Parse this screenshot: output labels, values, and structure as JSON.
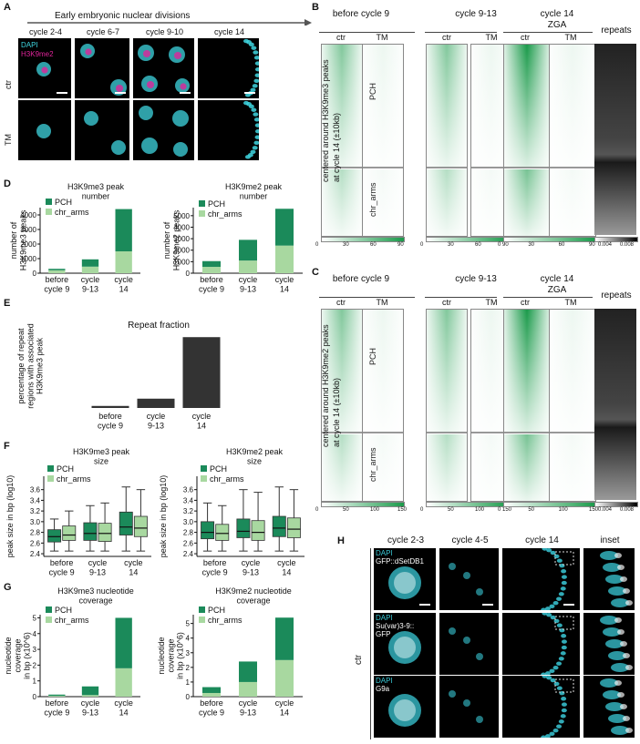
{
  "panel_letters": {
    "A": "A",
    "B": "B",
    "C": "C",
    "D": "D",
    "E": "E",
    "F": "F",
    "G": "G",
    "H": "H"
  },
  "panelA": {
    "arrow_label": "Early embryonic nuclear divisions",
    "columns": [
      "cycle 2-4",
      "cycle 6-7",
      "cycle 9-10",
      "cycle 14"
    ],
    "rows": [
      "ctr",
      "TM"
    ],
    "legend": [
      "DAPI",
      "H3K9me2"
    ],
    "colors": {
      "dapi": "#3fd6e0",
      "h3k9me2": "#e0249a"
    }
  },
  "panelB": {
    "groups": [
      "before cycle 9",
      "cycle 9-13",
      "cycle 14"
    ],
    "group_sub": "ZGA",
    "cols": [
      "ctr",
      "TM",
      "ctr",
      "TM",
      "ctr",
      "TM"
    ],
    "repeats": "repeats",
    "ylabel": "centered around H3K9me3 peaks\nat cycle 14 (±10kb)",
    "row_labels": [
      "PCH",
      "chr_arms"
    ],
    "scale_ticks": [
      "0",
      "30",
      "60",
      "90"
    ],
    "repeat_ticks": [
      "0.004",
      "0.008"
    ]
  },
  "panelC": {
    "groups": [
      "before cycle 9",
      "cycle 9-13",
      "cycle 14"
    ],
    "group_sub": "ZGA",
    "cols": [
      "ctr",
      "TM",
      "ctr",
      "TM",
      "ctr",
      "TM"
    ],
    "repeats": "repeats",
    "ylabel": "centered around H3K9me2 peaks\nat cycle 14 (±10kb)",
    "row_labels": [
      "PCH",
      "chr_arms"
    ],
    "scale_ticks": [
      "0",
      "50",
      "100",
      "150"
    ],
    "repeat_ticks": [
      "0.004",
      "0.008"
    ]
  },
  "chart_data": [
    {
      "id": "D1",
      "type": "bar",
      "title": "H3K9me3 peak\nnumber",
      "ylabel": "number of\nH3K9me3 peaks",
      "categories": [
        "before\ncycle 9",
        "cycle\n9-13",
        "cycle\n14"
      ],
      "ylim": [
        0,
        4500
      ],
      "yticks": [
        0,
        1000,
        2000,
        3000,
        4000
      ],
      "series": [
        {
          "name": "chr_arms",
          "values": [
            200,
            450,
            1500
          ]
        },
        {
          "name": "PCH",
          "values": [
            100,
            500,
            2900
          ]
        }
      ]
    },
    {
      "id": "D2",
      "type": "bar",
      "title": "H3K9me2 peak\nnumber",
      "ylabel": "number of\nH3K9me2 peaks",
      "categories": [
        "before\ncycle 9",
        "cycle\n9-13",
        "cycle\n14"
      ],
      "ylim": [
        0,
        5700
      ],
      "yticks": [
        0,
        1000,
        2000,
        3000,
        4000,
        5000
      ],
      "series": [
        {
          "name": "chr_arms",
          "values": [
            550,
            1100,
            2400
          ]
        },
        {
          "name": "PCH",
          "values": [
            500,
            1800,
            3200
          ]
        }
      ]
    },
    {
      "id": "E",
      "type": "bar",
      "title": "Repeat fraction",
      "ylabel": "percentage of repeat\nregions with associated\nH3K9me3 peak",
      "categories": [
        "before\ncycle 9",
        "cycle\n9-13",
        "cycle\n14"
      ],
      "ylim": [
        0,
        18
      ],
      "series": [
        {
          "values": [
            0.5,
            2.3,
            17.5
          ]
        }
      ]
    },
    {
      "id": "F1",
      "type": "box",
      "title": "H3K9me3 peak\nsize",
      "ylabel": "peak size in bp (log10)",
      "categories": [
        "before\ncycle 9",
        "cycle\n9-13",
        "cycle\n14"
      ],
      "ylim": [
        2.35,
        3.85
      ],
      "yticks": [
        2.4,
        2.6,
        2.8,
        3.0,
        3.2,
        3.4,
        3.6
      ],
      "series": [
        {
          "name": "PCH",
          "boxes": [
            [
              2.45,
              2.62,
              2.72,
              2.85,
              3.05
            ],
            [
              2.45,
              2.65,
              2.78,
              2.98,
              3.3
            ],
            [
              2.45,
              2.75,
              2.9,
              3.18,
              3.65
            ]
          ]
        },
        {
          "name": "chr_arms",
          "boxes": [
            [
              2.45,
              2.65,
              2.75,
              2.92,
              3.2
            ],
            [
              2.45,
              2.63,
              2.78,
              2.97,
              3.35
            ],
            [
              2.45,
              2.72,
              2.88,
              3.1,
              3.6
            ]
          ]
        }
      ]
    },
    {
      "id": "F2",
      "type": "box",
      "title": "H3K9me2 peak\nsize",
      "ylabel": "peak size in bp (log10)",
      "categories": [
        "before\ncycle 9",
        "cycle\n9-13",
        "cycle\n14"
      ],
      "ylim": [
        2.35,
        3.85
      ],
      "yticks": [
        2.4,
        2.6,
        2.8,
        3.0,
        3.2,
        3.4,
        3.6
      ],
      "series": [
        {
          "name": "PCH",
          "boxes": [
            [
              2.45,
              2.68,
              2.8,
              3.0,
              3.35
            ],
            [
              2.45,
              2.7,
              2.82,
              3.05,
              3.6
            ],
            [
              2.45,
              2.72,
              2.88,
              3.1,
              3.65
            ]
          ]
        },
        {
          "name": "chr_arms",
          "boxes": [
            [
              2.45,
              2.65,
              2.78,
              2.95,
              3.3
            ],
            [
              2.45,
              2.65,
              2.8,
              3.02,
              3.55
            ],
            [
              2.45,
              2.7,
              2.86,
              3.07,
              3.6
            ]
          ]
        }
      ]
    },
    {
      "id": "G1",
      "type": "bar",
      "title": "H3K9me3 nucleotide\ncoverage",
      "ylabel": "nucleotide\ncoverage\nin bp (x10^6)",
      "categories": [
        "before\ncycle 9",
        "cycle\n9-13",
        "cycle\n14"
      ],
      "ylim": [
        0,
        5.2
      ],
      "yticks": [
        0,
        1,
        2,
        3,
        4,
        5
      ],
      "series": [
        {
          "name": "chr_arms",
          "values": [
            0.05,
            0.1,
            1.8
          ]
        },
        {
          "name": "PCH",
          "values": [
            0.08,
            0.55,
            3.2
          ]
        }
      ]
    },
    {
      "id": "G2",
      "type": "bar",
      "title": "H3K9me2 nucleotide\ncoverage",
      "ylabel": "nucleotide\ncoverage\nin bp (x10^6)",
      "categories": [
        "before\ncycle 9",
        "cycle\n9-13",
        "cycle\n14"
      ],
      "ylim": [
        0,
        5.6
      ],
      "yticks": [
        0,
        1,
        2,
        3,
        4,
        5
      ],
      "series": [
        {
          "name": "chr_arms",
          "values": [
            0.25,
            1.0,
            2.5
          ]
        },
        {
          "name": "PCH",
          "values": [
            0.4,
            1.4,
            2.9
          ]
        }
      ]
    }
  ],
  "legend": {
    "pch": "PCH",
    "chr_arms": "chr_arms",
    "pch_color": "#1b8a5a",
    "chr_color": "#a8d8a0",
    "repeat_color": "#333333"
  },
  "panelH": {
    "columns": [
      "cycle 2-3",
      "cycle 4-5",
      "cycle 14",
      "inset"
    ],
    "row_group": "ctr",
    "rows": [
      {
        "stain": "DAPI",
        "marker": "GFP::dSetDB1"
      },
      {
        "stain": "DAPI",
        "marker": "Su(var)3-9::\nGFP"
      },
      {
        "stain": "DAPI",
        "marker": "G9a"
      }
    ]
  }
}
